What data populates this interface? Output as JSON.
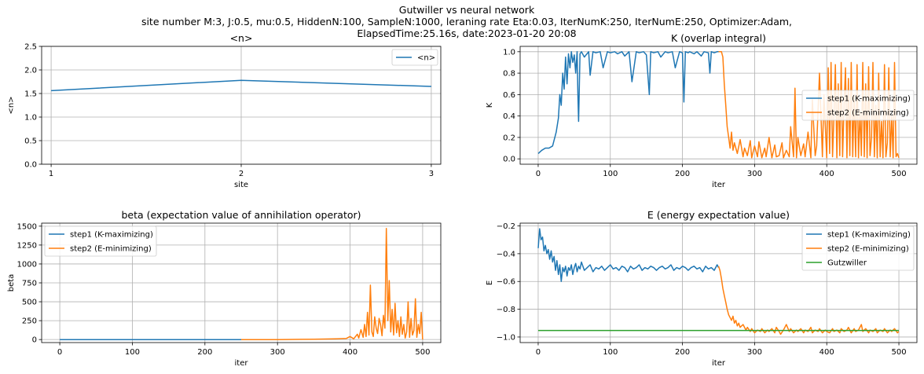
{
  "figure": {
    "suptitle_lines": [
      "Gutwiller vs neural network",
      "site number M:3, J:0.5, mu:0.5, HiddenN:100, SampleN:1000, leraning rate Eta:0.03, IterNumK:250, IterNumE:250, Optimizer:Adam,",
      "ElapsedTime:25.16s, date:2023-01-20  20:08"
    ]
  },
  "colors": {
    "blue": "#1f77b4",
    "orange": "#ff7f0e",
    "green": "#2ca02c"
  },
  "chart_data": [
    {
      "id": "n",
      "type": "line",
      "title": "<n>",
      "xlabel": "site",
      "ylabel": "<n>",
      "xlim": [
        0.95,
        3.05
      ],
      "ylim": [
        0.0,
        2.5
      ],
      "xticks": [
        1,
        2,
        3
      ],
      "yticks": [
        0.0,
        0.5,
        1.0,
        1.5,
        2.0,
        2.5
      ],
      "legend": "top-right",
      "grid": true,
      "series": [
        {
          "name": "<n>",
          "color": "#1f77b4",
          "x": [
            1,
            2,
            3
          ],
          "y": [
            1.56,
            1.78,
            1.65
          ]
        }
      ]
    },
    {
      "id": "K",
      "type": "line",
      "title": "K (overlap integral)",
      "xlabel": "iter",
      "ylabel": "K",
      "xlim": [
        -25,
        525
      ],
      "ylim": [
        -0.05,
        1.05
      ],
      "xticks": [
        0,
        100,
        200,
        300,
        400,
        500
      ],
      "yticks": [
        0.0,
        0.2,
        0.4,
        0.6,
        0.8,
        1.0
      ],
      "legend": "center-right",
      "grid": true,
      "series": [
        {
          "name": "step1 (K-maximizing)",
          "color": "#1f77b4",
          "x": [
            0,
            5,
            10,
            15,
            20,
            25,
            28,
            30,
            32,
            34,
            36,
            38,
            40,
            42,
            44,
            46,
            48,
            50,
            52,
            54,
            55,
            56,
            58,
            60,
            64,
            70,
            72,
            76,
            80,
            86,
            90,
            96,
            100,
            106,
            110,
            116,
            120,
            126,
            130,
            136,
            140,
            146,
            150,
            154,
            156,
            160,
            166,
            170,
            176,
            180,
            186,
            190,
            196,
            200,
            202,
            204,
            208,
            210,
            216,
            220,
            226,
            230,
            236,
            238,
            240,
            244,
            248,
            250
          ],
          "y": [
            0.05,
            0.08,
            0.1,
            0.1,
            0.12,
            0.25,
            0.38,
            0.6,
            0.5,
            0.8,
            0.65,
            0.95,
            0.7,
            0.98,
            0.85,
            1.0,
            0.9,
            0.97,
            0.8,
            1.0,
            0.6,
            0.35,
            0.98,
            1.0,
            0.95,
            1.0,
            0.78,
            1.0,
            0.99,
            1.0,
            0.85,
            1.0,
            0.99,
            1.0,
            0.98,
            1.0,
            0.96,
            1.0,
            0.72,
            1.0,
            0.99,
            1.0,
            0.97,
            0.6,
            1.0,
            0.99,
            1.0,
            0.95,
            1.0,
            0.99,
            1.0,
            0.85,
            1.0,
            0.99,
            0.53,
            1.0,
            0.99,
            1.0,
            0.98,
            1.0,
            0.96,
            1.0,
            0.99,
            0.8,
            1.0,
            0.99,
            1.0,
            1.0
          ]
        },
        {
          "name": "step2 (E-minimizing)",
          "color": "#ff7f0e",
          "x": [
            250,
            254,
            256,
            258,
            260,
            262,
            264,
            266,
            268,
            270,
            272,
            276,
            280,
            284,
            286,
            290,
            294,
            296,
            300,
            304,
            306,
            310,
            314,
            316,
            320,
            324,
            328,
            330,
            334,
            338,
            340,
            344,
            348,
            350,
            354,
            356,
            358,
            360,
            364,
            368,
            370,
            374,
            378,
            380,
            384,
            386,
            390,
            394,
            396,
            400,
            402,
            404,
            406,
            408,
            410,
            412,
            414,
            416,
            418,
            420,
            422,
            424,
            426,
            428,
            430,
            432,
            434,
            436,
            438,
            440,
            442,
            444,
            446,
            448,
            450,
            452,
            454,
            456,
            458,
            460,
            462,
            464,
            466,
            468,
            470,
            472,
            474,
            476,
            478,
            480,
            482,
            484,
            486,
            488,
            490,
            492,
            494,
            496,
            498,
            500
          ],
          "y": [
            1.0,
            1.0,
            0.95,
            0.7,
            0.5,
            0.3,
            0.2,
            0.1,
            0.25,
            0.08,
            0.15,
            0.05,
            0.18,
            0.02,
            0.1,
            0.03,
            0.17,
            0.01,
            0.12,
            0.02,
            0.16,
            0.01,
            0.1,
            0.02,
            0.2,
            0.01,
            0.13,
            0.02,
            0.03,
            0.15,
            0.01,
            0.08,
            0.02,
            0.3,
            0.02,
            0.66,
            0.01,
            0.2,
            0.03,
            0.14,
            0.02,
            0.25,
            0.01,
            0.55,
            0.03,
            0.12,
            0.8,
            0.02,
            0.6,
            0.01,
            0.85,
            0.05,
            0.9,
            0.02,
            0.4,
            0.88,
            0.01,
            0.7,
            0.03,
            0.9,
            0.02,
            0.5,
            0.85,
            0.01,
            0.75,
            0.03,
            0.9,
            0.02,
            0.6,
            0.02,
            0.88,
            0.01,
            0.45,
            0.03,
            0.9,
            0.02,
            0.7,
            0.01,
            0.86,
            0.03,
            0.2,
            0.9,
            0.02,
            0.5,
            0.01,
            0.8,
            0.02,
            0.35,
            0.01,
            0.88,
            0.02,
            0.15,
            0.85,
            0.02,
            0.4,
            0.01,
            0.9,
            0.02,
            0.05,
            0.01
          ]
        }
      ]
    },
    {
      "id": "beta",
      "type": "line",
      "title": "beta (expectation value of annihilation operator)",
      "xlabel": "iter",
      "ylabel": "beta",
      "xlim": [
        -25,
        525
      ],
      "ylim": [
        -40,
        1540
      ],
      "xticks": [
        0,
        100,
        200,
        300,
        400,
        500
      ],
      "yticks": [
        0,
        250,
        500,
        750,
        1000,
        1250,
        1500
      ],
      "legend": "top-left",
      "grid": true,
      "series": [
        {
          "name": "step1 (K-maximizing)",
          "color": "#1f77b4",
          "x": [
            0,
            250
          ],
          "y": [
            0,
            0
          ]
        },
        {
          "name": "step2 (E-minimizing)",
          "color": "#ff7f0e",
          "x": [
            250,
            300,
            350,
            380,
            395,
            400,
            405,
            410,
            412,
            415,
            418,
            420,
            422,
            424,
            426,
            428,
            430,
            432,
            434,
            436,
            438,
            440,
            442,
            444,
            446,
            448,
            450,
            452,
            454,
            456,
            458,
            460,
            462,
            464,
            466,
            468,
            470,
            472,
            474,
            476,
            478,
            480,
            482,
            484,
            486,
            488,
            490,
            492,
            494,
            496,
            498,
            500
          ],
          "y": [
            0,
            0,
            5,
            10,
            15,
            40,
            10,
            70,
            20,
            130,
            30,
            200,
            40,
            360,
            60,
            720,
            100,
            40,
            300,
            150,
            80,
            280,
            200,
            50,
            320,
            150,
            1470,
            250,
            780,
            100,
            400,
            60,
            480,
            90,
            250,
            40,
            300,
            70,
            200,
            20,
            100,
            500,
            30,
            280,
            60,
            120,
            540,
            30,
            200,
            80,
            360,
            0
          ]
        }
      ]
    },
    {
      "id": "E",
      "type": "line",
      "title": "E (energy expectation value)",
      "xlabel": "iter",
      "ylabel": "E",
      "xlim": [
        -25,
        525
      ],
      "ylim": [
        -1.04,
        -0.18
      ],
      "xticks": [
        0,
        100,
        200,
        300,
        400,
        500
      ],
      "yticks": [
        -1.0,
        -0.8,
        -0.6,
        -0.4,
        -0.2
      ],
      "legend": "top-right",
      "grid": true,
      "series": [
        {
          "name": "step1 (K-maximizing)",
          "color": "#1f77b4",
          "x": [
            0,
            2,
            4,
            6,
            8,
            10,
            12,
            14,
            16,
            18,
            20,
            22,
            24,
            26,
            28,
            30,
            32,
            34,
            36,
            38,
            40,
            42,
            44,
            46,
            48,
            50,
            52,
            54,
            56,
            58,
            60,
            64,
            68,
            72,
            76,
            80,
            84,
            88,
            92,
            96,
            100,
            104,
            108,
            112,
            116,
            120,
            124,
            128,
            132,
            136,
            140,
            144,
            148,
            152,
            156,
            160,
            164,
            168,
            172,
            176,
            180,
            184,
            188,
            192,
            196,
            200,
            204,
            208,
            212,
            216,
            220,
            224,
            228,
            232,
            236,
            240,
            244,
            248,
            250
          ],
          "y": [
            -0.36,
            -0.22,
            -0.3,
            -0.28,
            -0.38,
            -0.34,
            -0.4,
            -0.37,
            -0.44,
            -0.38,
            -0.46,
            -0.42,
            -0.52,
            -0.45,
            -0.55,
            -0.48,
            -0.6,
            -0.5,
            -0.53,
            -0.49,
            -0.56,
            -0.5,
            -0.52,
            -0.48,
            -0.55,
            -0.5,
            -0.47,
            -0.53,
            -0.49,
            -0.51,
            -0.46,
            -0.52,
            -0.5,
            -0.48,
            -0.53,
            -0.5,
            -0.51,
            -0.49,
            -0.52,
            -0.5,
            -0.48,
            -0.51,
            -0.5,
            -0.52,
            -0.49,
            -0.5,
            -0.53,
            -0.49,
            -0.51,
            -0.5,
            -0.48,
            -0.52,
            -0.5,
            -0.51,
            -0.49,
            -0.5,
            -0.52,
            -0.5,
            -0.49,
            -0.51,
            -0.5,
            -0.48,
            -0.52,
            -0.5,
            -0.51,
            -0.49,
            -0.5,
            -0.52,
            -0.5,
            -0.49,
            -0.51,
            -0.5,
            -0.53,
            -0.49,
            -0.51,
            -0.5,
            -0.52,
            -0.48,
            -0.5
          ]
        },
        {
          "name": "step2 (E-minimizing)",
          "color": "#ff7f0e",
          "x": [
            250,
            252,
            254,
            256,
            258,
            260,
            262,
            264,
            266,
            268,
            270,
            272,
            274,
            276,
            278,
            280,
            284,
            288,
            290,
            294,
            296,
            300,
            304,
            308,
            310,
            314,
            318,
            320,
            324,
            328,
            330,
            334,
            336,
            340,
            344,
            348,
            350,
            354,
            358,
            360,
            364,
            368,
            370,
            374,
            378,
            380,
            384,
            388,
            390,
            394,
            398,
            400,
            404,
            408,
            410,
            414,
            418,
            420,
            424,
            428,
            430,
            434,
            438,
            440,
            444,
            448,
            450,
            454,
            458,
            460,
            464,
            468,
            470,
            474,
            478,
            480,
            484,
            488,
            490,
            494,
            498,
            500
          ],
          "y": [
            -0.49,
            -0.52,
            -0.58,
            -0.65,
            -0.7,
            -0.75,
            -0.8,
            -0.84,
            -0.86,
            -0.88,
            -0.85,
            -0.9,
            -0.88,
            -0.92,
            -0.9,
            -0.93,
            -0.91,
            -0.95,
            -0.93,
            -0.96,
            -0.94,
            -0.97,
            -0.95,
            -0.96,
            -0.94,
            -0.97,
            -0.95,
            -0.96,
            -0.94,
            -0.97,
            -0.93,
            -0.96,
            -0.98,
            -0.95,
            -0.91,
            -0.96,
            -0.94,
            -0.97,
            -0.95,
            -0.96,
            -0.94,
            -0.97,
            -0.95,
            -0.96,
            -0.93,
            -0.97,
            -0.95,
            -0.96,
            -0.94,
            -0.97,
            -0.95,
            -0.96,
            -0.97,
            -0.94,
            -0.96,
            -0.95,
            -0.97,
            -0.94,
            -0.96,
            -0.95,
            -0.93,
            -0.97,
            -0.94,
            -0.96,
            -0.95,
            -0.91,
            -0.96,
            -0.94,
            -0.97,
            -0.95,
            -0.96,
            -0.94,
            -0.97,
            -0.95,
            -0.96,
            -0.94,
            -0.97,
            -0.95,
            -0.96,
            -0.94,
            -0.97,
            -0.96
          ]
        },
        {
          "name": "Gutzwiller",
          "color": "#2ca02c",
          "x": [
            0,
            500
          ],
          "y": [
            -0.953,
            -0.953
          ]
        }
      ]
    }
  ]
}
